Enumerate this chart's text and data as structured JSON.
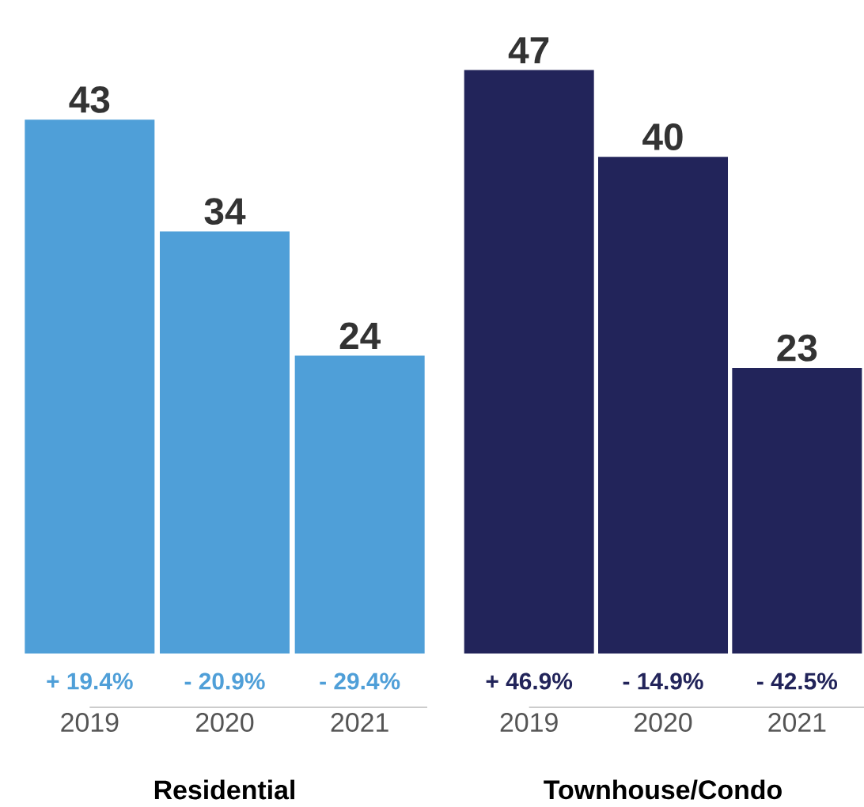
{
  "chart_data": [
    {
      "type": "bar",
      "xlabel": "Residential",
      "categories": [
        "2019",
        "2020",
        "2021"
      ],
      "values": [
        43,
        34,
        24
      ],
      "color": "#4f9fd8",
      "data_labels": true,
      "annotations": [
        "+ 19.4%",
        "- 20.9%",
        "- 29.4%"
      ]
    },
    {
      "type": "bar",
      "xlabel": "Townhouse/Condo",
      "categories": [
        "2019",
        "2020",
        "2021"
      ],
      "values": [
        47,
        40,
        23
      ],
      "color": "#22245a",
      "data_labels": true,
      "annotations": [
        "+ 46.9%",
        "- 14.9%",
        "- 42.5%"
      ]
    }
  ]
}
